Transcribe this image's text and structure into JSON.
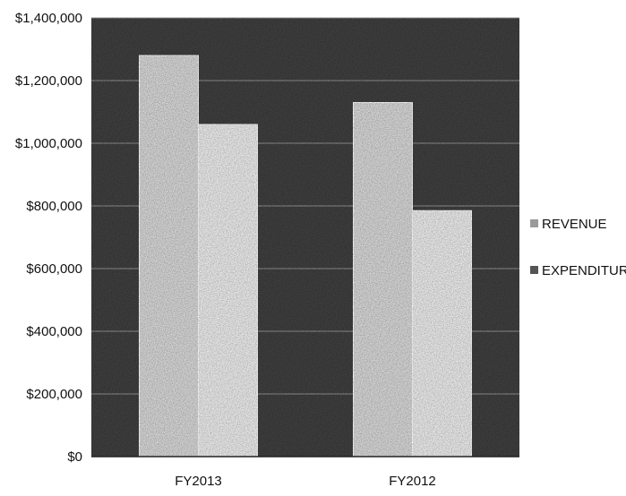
{
  "chart_data": {
    "type": "bar",
    "categories": [
      "FY2013",
      "FY2012"
    ],
    "series": [
      {
        "name": "REVENUE",
        "values": [
          1280000,
          1130000
        ]
      },
      {
        "name": "EXPENDITURE",
        "values": [
          1060000,
          785000
        ]
      }
    ],
    "ylim": [
      0,
      1400000
    ],
    "yticks": [
      0,
      200000,
      400000,
      600000,
      800000,
      1000000,
      1200000,
      1400000
    ],
    "ytick_labels": [
      "$0",
      "$200,000",
      "$400,000",
      "$600,000",
      "$800,000",
      "$1,000,000",
      "$1,200,000",
      "$1,400,000"
    ],
    "grid": true,
    "legend": "right",
    "colors": {
      "plot_background": "#3e3e3e",
      "gridline": "#8f8f8f",
      "revenue_bar": "#d2d2d2",
      "expenditure_bar": "#e6e6e6",
      "bar_edge": "#f7f7f7",
      "text": "#111111"
    }
  }
}
